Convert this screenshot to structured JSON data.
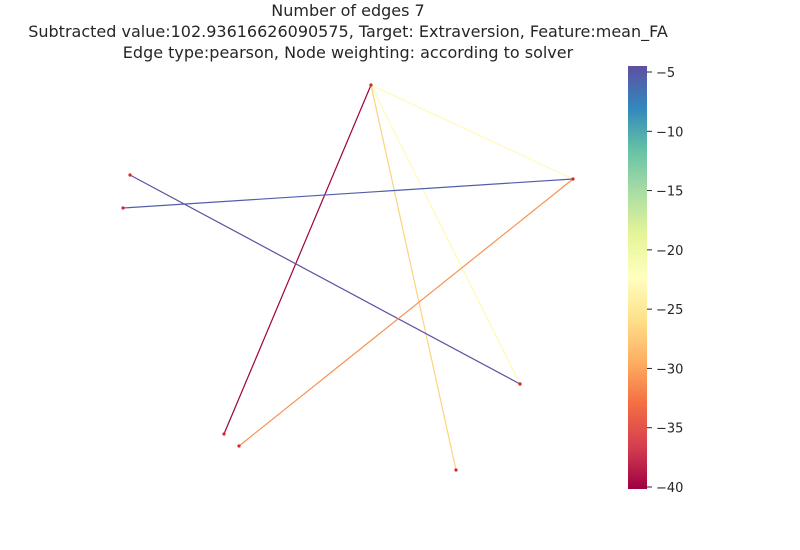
{
  "title": {
    "line1": "Number of edges 7",
    "line2": "Subtracted value:102.93616626090575, Target: Extraversion, Feature:mean_FA",
    "line3": "Edge type:pearson, Node weighting: according to solver"
  },
  "colorbar": {
    "colormap": "Spectral",
    "min": -40,
    "max": -5,
    "ticks": [
      -5,
      -10,
      -15,
      -20,
      -25,
      -30,
      -35,
      -40
    ],
    "tick_labels": [
      "−5",
      "−10",
      "−15",
      "−20",
      "−25",
      "−30",
      "−35",
      "−40"
    ]
  },
  "graph": {
    "node_color": "#d62728",
    "nodes": [
      "n1",
      "n2",
      "n3",
      "n4",
      "n5",
      "n6",
      "n7",
      "n8",
      "n9"
    ],
    "edges": [
      {
        "source": "n1",
        "target": "n8",
        "value": -40
      },
      {
        "source": "n1",
        "target": "n3",
        "value": -23
      },
      {
        "source": "n1",
        "target": "n5",
        "value": -23
      },
      {
        "source": "n1",
        "target": "n7",
        "value": -27
      },
      {
        "source": "n2",
        "target": "n3",
        "value": -6
      },
      {
        "source": "n4",
        "target": "n6",
        "value": -5
      },
      {
        "source": "n3",
        "target": "n9",
        "value": -31
      }
    ]
  }
}
